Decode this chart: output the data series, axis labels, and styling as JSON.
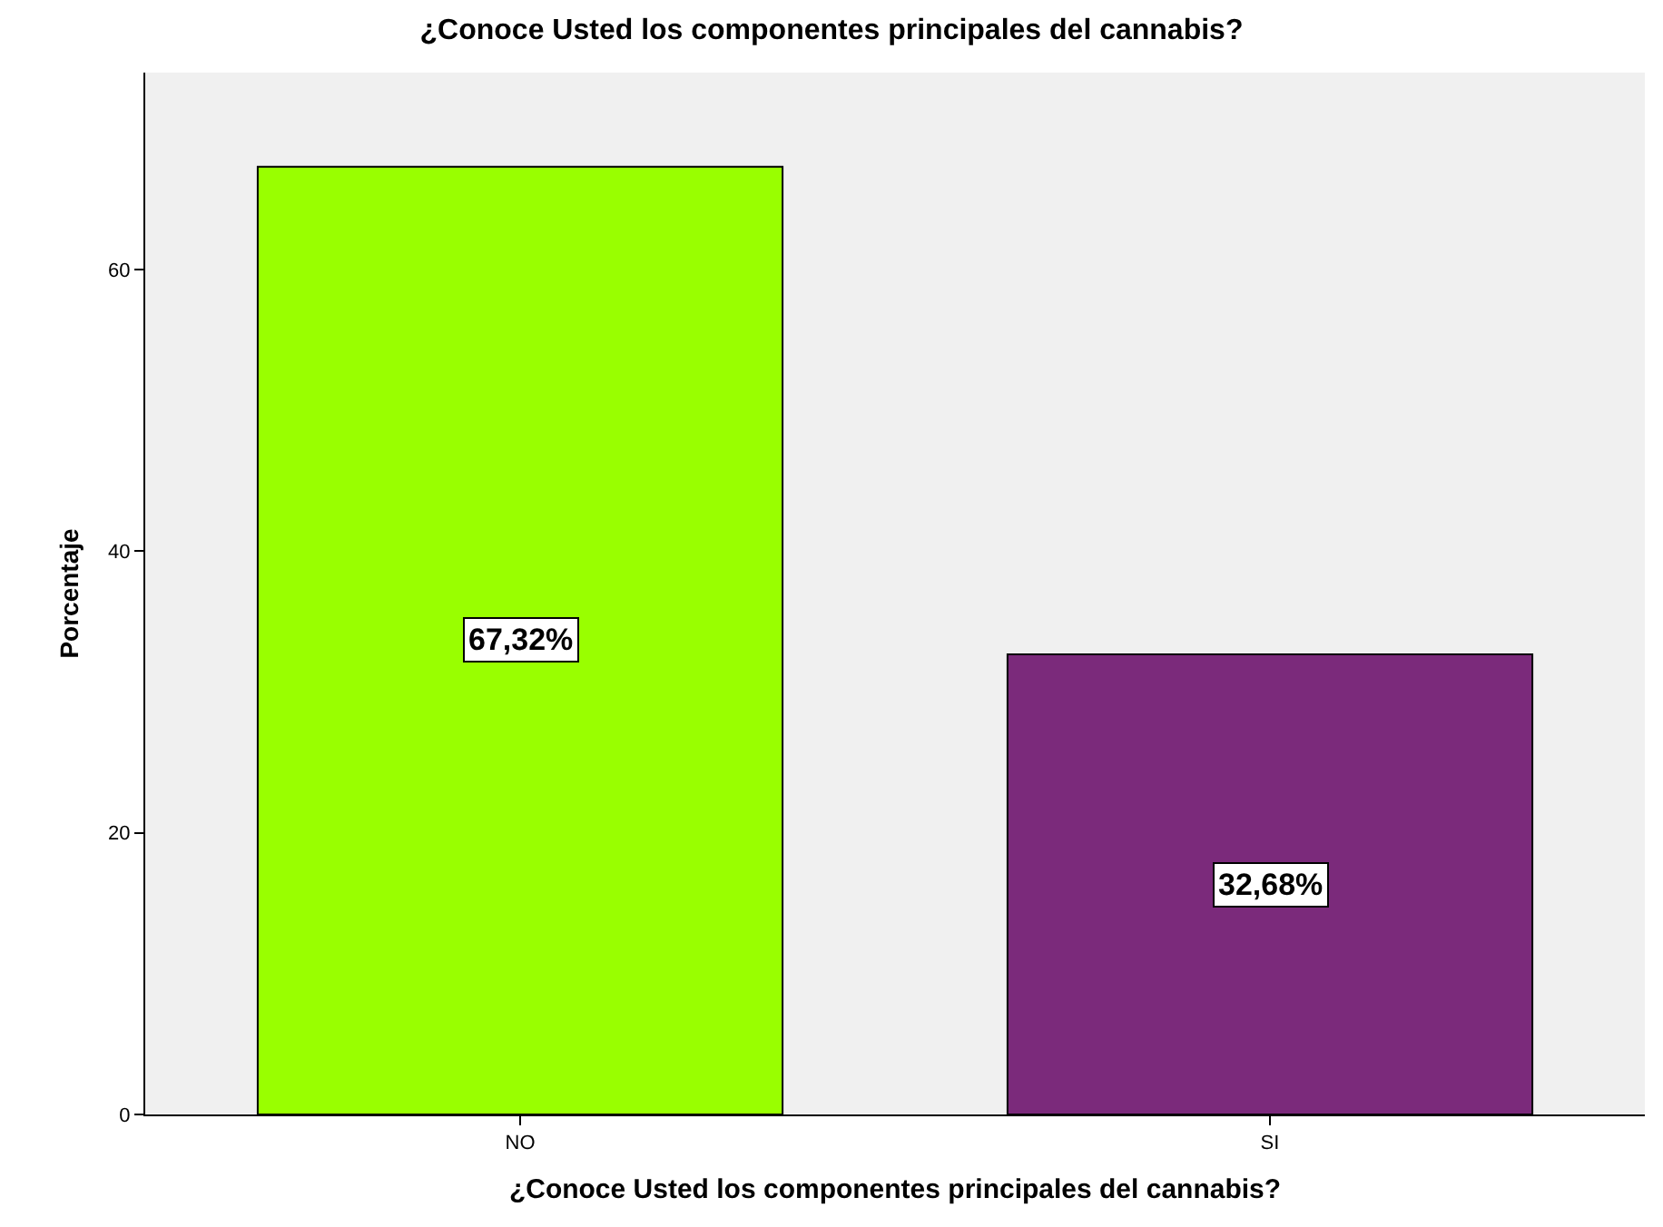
{
  "chart_data": {
    "type": "bar",
    "title": "¿Conoce Usted los componentes principales del cannabis?",
    "xlabel": "¿Conoce Usted los componentes principales del cannabis?",
    "ylabel": "Porcentaje",
    "categories": [
      "NO",
      "SI"
    ],
    "values": [
      67.32,
      32.68
    ],
    "colors": [
      "#99ff00",
      "#7b2a7b"
    ],
    "value_labels": [
      "67,32%",
      "32,68%"
    ],
    "ylim": [
      0,
      74
    ],
    "yticks": [
      0,
      20,
      40,
      60
    ],
    "grid": false
  }
}
